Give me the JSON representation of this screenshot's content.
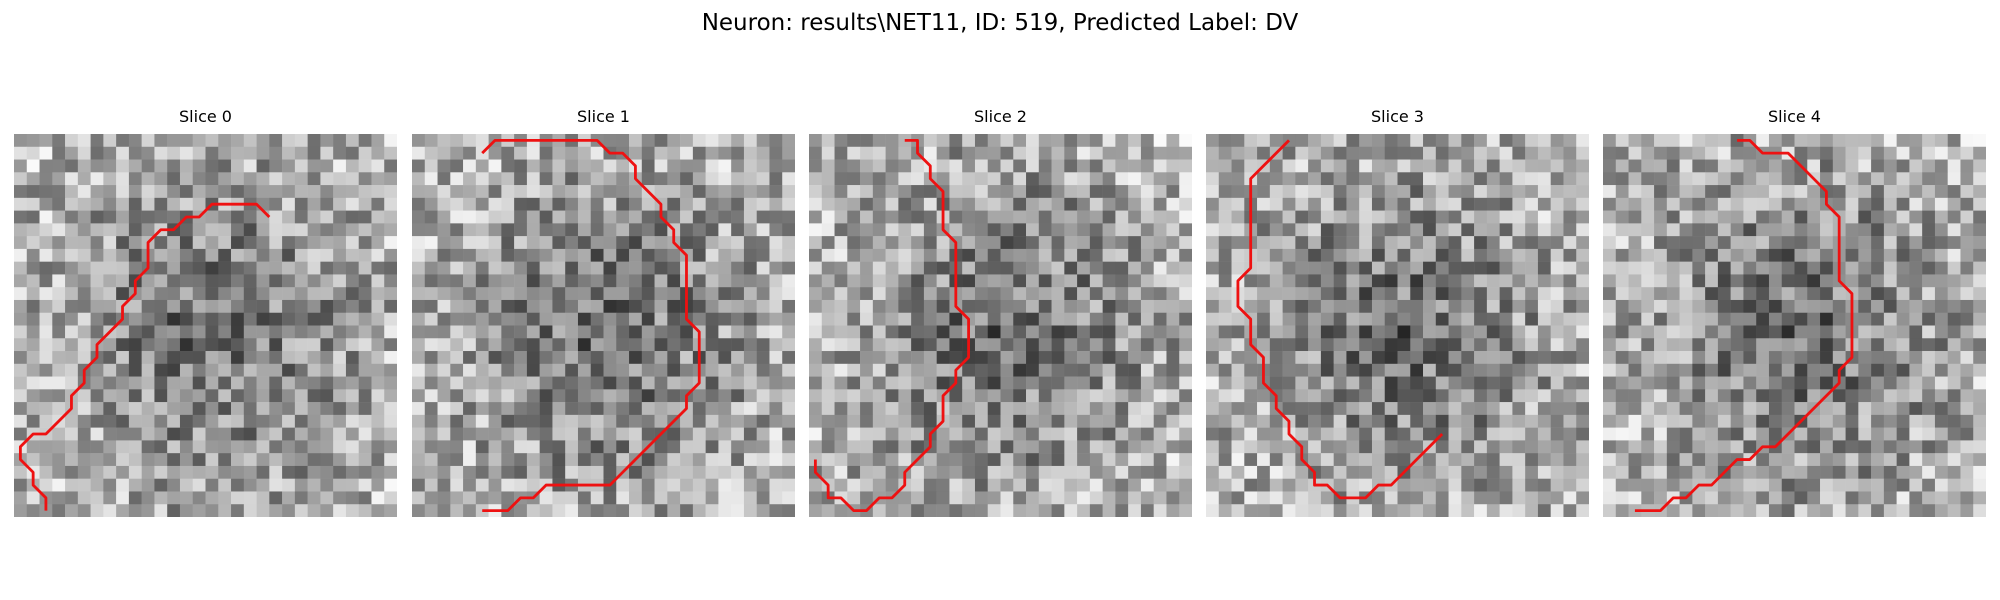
{
  "figure": {
    "title": "Neuron: results\\NET11, ID: 519, Predicted Label: DV"
  },
  "panels": [
    {
      "title": "Slice 0",
      "seed": 11,
      "contour": [
        [
          20.0,
          6.5
        ],
        [
          19.0,
          5.5
        ],
        [
          15.5,
          5.5
        ],
        [
          14.5,
          6.5
        ],
        [
          13.5,
          6.5
        ],
        [
          12.5,
          7.5
        ],
        [
          11.5,
          7.5
        ],
        [
          10.5,
          8.5
        ],
        [
          10.5,
          9.5
        ],
        [
          10.5,
          10.5
        ],
        [
          9.5,
          11.5
        ],
        [
          9.5,
          12.5
        ],
        [
          8.5,
          13.5
        ],
        [
          8.5,
          14.5
        ],
        [
          7.5,
          15.5
        ],
        [
          6.5,
          16.5
        ],
        [
          6.5,
          17.5
        ],
        [
          5.5,
          18.5
        ],
        [
          5.5,
          19.5
        ],
        [
          4.5,
          20.5
        ],
        [
          4.5,
          21.5
        ],
        [
          3.5,
          22.5
        ],
        [
          2.5,
          23.5
        ],
        [
          1.5,
          23.5
        ],
        [
          0.5,
          24.5
        ],
        [
          0.5,
          25.5
        ],
        [
          1.5,
          26.5
        ],
        [
          1.5,
          27.5
        ],
        [
          2.5,
          28.5
        ],
        [
          2.5,
          29.5
        ]
      ]
    },
    {
      "title": "Slice 1",
      "seed": 23,
      "contour": [
        [
          5.5,
          1.5
        ],
        [
          6.5,
          0.5
        ],
        [
          14.5,
          0.5
        ],
        [
          15.5,
          1.5
        ],
        [
          16.5,
          1.5
        ],
        [
          17.5,
          2.5
        ],
        [
          17.5,
          3.5
        ],
        [
          19.5,
          5.5
        ],
        [
          19.5,
          6.5
        ],
        [
          20.5,
          7.5
        ],
        [
          20.5,
          8.5
        ],
        [
          21.5,
          9.5
        ],
        [
          21.5,
          14.5
        ],
        [
          22.5,
          15.5
        ],
        [
          22.5,
          16.5
        ],
        [
          22.5,
          19.5
        ],
        [
          21.5,
          20.5
        ],
        [
          21.5,
          21.5
        ],
        [
          20.5,
          22.5
        ],
        [
          19.5,
          23.5
        ],
        [
          18.5,
          24.5
        ],
        [
          17.5,
          25.5
        ],
        [
          16.5,
          26.5
        ],
        [
          15.5,
          27.5
        ],
        [
          13.5,
          27.5
        ],
        [
          10.5,
          27.5
        ],
        [
          9.5,
          28.5
        ],
        [
          8.5,
          28.5
        ],
        [
          7.5,
          29.5
        ],
        [
          5.5,
          29.5
        ]
      ]
    },
    {
      "title": "Slice 2",
      "seed": 37,
      "contour": [
        [
          7.5,
          0.5
        ],
        [
          8.5,
          0.5
        ],
        [
          8.5,
          1.5
        ],
        [
          9.5,
          2.5
        ],
        [
          9.5,
          3.5
        ],
        [
          10.5,
          4.5
        ],
        [
          10.5,
          5.5
        ],
        [
          10.5,
          7.5
        ],
        [
          11.5,
          8.5
        ],
        [
          11.5,
          13.5
        ],
        [
          12.5,
          14.5
        ],
        [
          12.5,
          17.5
        ],
        [
          11.5,
          18.5
        ],
        [
          11.5,
          19.5
        ],
        [
          10.5,
          20.5
        ],
        [
          10.5,
          22.5
        ],
        [
          9.5,
          23.5
        ],
        [
          9.5,
          24.5
        ],
        [
          8.5,
          25.5
        ],
        [
          7.5,
          26.5
        ],
        [
          7.5,
          27.5
        ],
        [
          6.5,
          28.5
        ],
        [
          5.5,
          28.5
        ],
        [
          4.5,
          29.5
        ],
        [
          3.5,
          29.5
        ],
        [
          2.5,
          28.5
        ],
        [
          1.5,
          28.5
        ],
        [
          1.5,
          27.5
        ],
        [
          0.5,
          26.5
        ],
        [
          0.5,
          25.5
        ]
      ]
    },
    {
      "title": "Slice 3",
      "seed": 53,
      "contour": [
        [
          6.5,
          0.5
        ],
        [
          5.5,
          1.5
        ],
        [
          4.5,
          2.5
        ],
        [
          3.5,
          3.5
        ],
        [
          3.5,
          4.5
        ],
        [
          3.5,
          10.5
        ],
        [
          2.5,
          11.5
        ],
        [
          2.5,
          13.5
        ],
        [
          3.5,
          14.5
        ],
        [
          3.5,
          16.5
        ],
        [
          4.5,
          17.5
        ],
        [
          4.5,
          19.5
        ],
        [
          5.5,
          20.5
        ],
        [
          5.5,
          21.5
        ],
        [
          6.5,
          22.5
        ],
        [
          6.5,
          23.5
        ],
        [
          7.5,
          24.5
        ],
        [
          7.5,
          25.5
        ],
        [
          8.5,
          26.5
        ],
        [
          8.5,
          27.5
        ],
        [
          9.5,
          27.5
        ],
        [
          10.5,
          28.5
        ],
        [
          11.5,
          28.5
        ],
        [
          12.5,
          28.5
        ],
        [
          13.5,
          27.5
        ],
        [
          14.5,
          27.5
        ],
        [
          15.5,
          26.5
        ],
        [
          16.5,
          25.5
        ],
        [
          17.5,
          24.5
        ],
        [
          18.5,
          23.5
        ]
      ]
    },
    {
      "title": "Slice 4",
      "seed": 71,
      "contour": [
        [
          10.5,
          0.5
        ],
        [
          11.5,
          0.5
        ],
        [
          12.5,
          1.5
        ],
        [
          13.5,
          1.5
        ],
        [
          14.5,
          1.5
        ],
        [
          15.5,
          2.5
        ],
        [
          16.5,
          3.5
        ],
        [
          17.5,
          4.5
        ],
        [
          17.5,
          5.5
        ],
        [
          18.5,
          6.5
        ],
        [
          18.5,
          11.5
        ],
        [
          19.5,
          12.5
        ],
        [
          19.5,
          17.5
        ],
        [
          18.5,
          18.5
        ],
        [
          18.5,
          19.5
        ],
        [
          17.5,
          20.5
        ],
        [
          16.5,
          21.5
        ],
        [
          15.5,
          22.5
        ],
        [
          14.5,
          23.5
        ],
        [
          13.5,
          24.5
        ],
        [
          12.5,
          24.5
        ],
        [
          11.5,
          25.5
        ],
        [
          10.5,
          25.5
        ],
        [
          9.5,
          26.5
        ],
        [
          8.5,
          27.5
        ],
        [
          7.5,
          27.5
        ],
        [
          6.5,
          28.5
        ],
        [
          5.5,
          28.5
        ],
        [
          4.5,
          29.5
        ],
        [
          2.5,
          29.5
        ]
      ]
    }
  ],
  "style": {
    "contour_color": "#ee1111"
  }
}
